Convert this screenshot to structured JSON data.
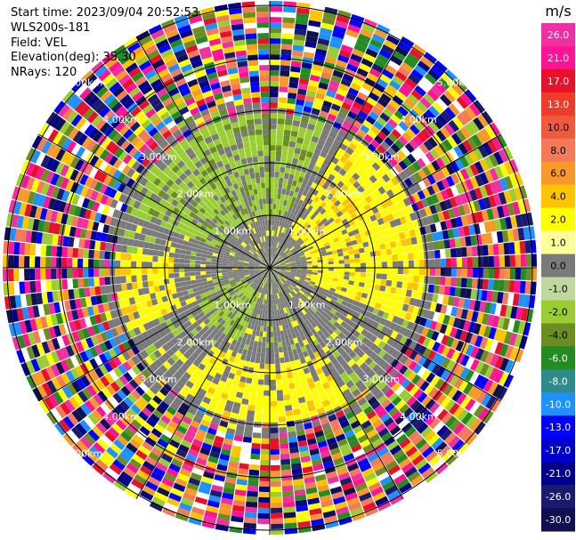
{
  "info": {
    "start_time": "Start time: 2023/09/04 20:52:53",
    "instrument": "WLS200s-181",
    "field": "Field: VEL",
    "elevation": "Elevation(deg): 35.30",
    "nrays": "NRays: 120"
  },
  "colorbar": {
    "unit": "m/s",
    "ticks": [
      "26.0",
      "21.0",
      "17.0",
      "13.0",
      "10.0",
      "8.0",
      "6.0",
      "4.0",
      "2.0",
      "1.0",
      "0.0",
      "-1.0",
      "-2.0",
      "-4.0",
      "-6.0",
      "-8.0",
      "-10.0",
      "-13.0",
      "-17.0",
      "-21.0",
      "-26.0",
      "-30.0"
    ],
    "colors": [
      "#f030a0",
      "#ff1493",
      "#e8102a",
      "#f03b2a",
      "#f05a3c",
      "#f47a5a",
      "#f79a2a",
      "#ffc400",
      "#ffff00",
      "#ffff9a",
      "#7a7a7a",
      "#c0d8a0",
      "#9acd32",
      "#6b8e23",
      "#228b22",
      "#2e8b8b",
      "#1e90ff",
      "#0000ff",
      "#0000cd",
      "#00008b",
      "#1a1a6e",
      "#101050"
    ]
  },
  "chart_data": {
    "type": "heatmap",
    "subtype": "radar-ppi",
    "field": "VEL",
    "unit": "m/s",
    "n_rays": 120,
    "range_rings": [
      {
        "label": "1.00km"
      },
      {
        "label": "2.00km"
      },
      {
        "label": "3.00km"
      },
      {
        "label": "4.00km"
      },
      {
        "label": "5.00km"
      }
    ],
    "azimuth_lines_deg": [
      0,
      30,
      60,
      90,
      120,
      150,
      180,
      210,
      240,
      270,
      300,
      330
    ]
  }
}
